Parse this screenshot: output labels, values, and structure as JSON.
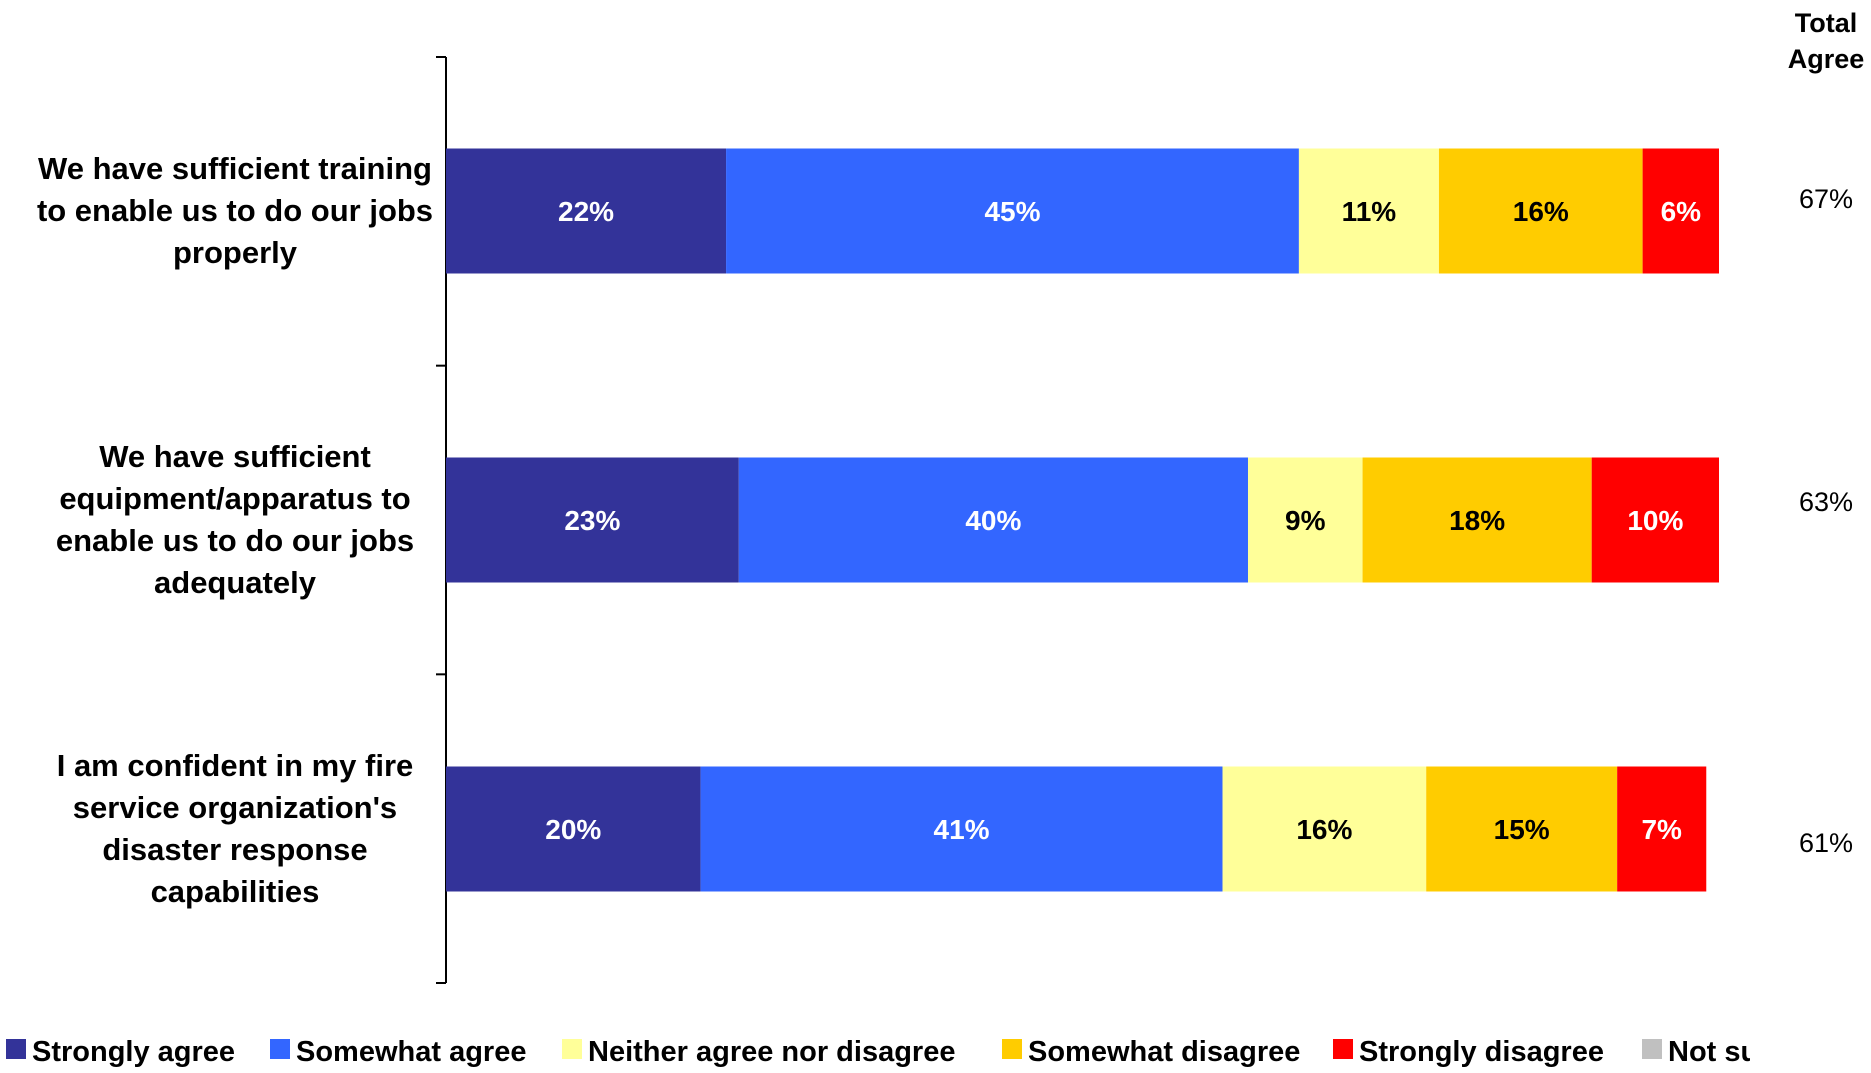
{
  "chart_data": {
    "type": "bar",
    "orientation": "horizontal",
    "stacked": true,
    "title": "",
    "xlim": [
      0,
      100
    ],
    "grid": false,
    "legend_position": "bottom",
    "categories": [
      "We have sufficient training to enable us to do our jobs properly",
      "We have sufficient equipment/apparatus to enable us to do our jobs adequately",
      "I am confident in my fire service organization's disaster response capabilities"
    ],
    "category_lines": [
      [
        "We have sufficient training",
        "to enable us to do our jobs",
        "properly"
      ],
      [
        "We have sufficient",
        "equipment/apparatus to",
        "enable us to do our jobs",
        "adequately"
      ],
      [
        "I am confident in my fire",
        "service organization's",
        "disaster response",
        "capabilities"
      ]
    ],
    "series": [
      {
        "name": "Strongly agree",
        "color": "#333399",
        "label_color": "#ffffff",
        "values": [
          22,
          23,
          20
        ],
        "labels": [
          "22%",
          "23%",
          "20%"
        ]
      },
      {
        "name": "Somewhat agree",
        "color": "#3366ff",
        "label_color": "#ffffff",
        "values": [
          45,
          40,
          41
        ],
        "labels": [
          "45%",
          "40%",
          "41%"
        ]
      },
      {
        "name": "Neither agree nor disagree",
        "color": "#ffff99",
        "label_color": "#000000",
        "values": [
          11,
          9,
          16
        ],
        "labels": [
          "11%",
          "9%",
          "16%"
        ]
      },
      {
        "name": "Somewhat disagree",
        "color": "#ffcc00",
        "label_color": "#000000",
        "values": [
          16,
          18,
          15
        ],
        "labels": [
          "16%",
          "18%",
          "15%"
        ]
      },
      {
        "name": "Strongly disagree",
        "color": "#ff0000",
        "label_color": "#ffffff",
        "values": [
          6,
          10,
          7
        ],
        "labels": [
          "6%",
          "10%",
          "7%"
        ]
      },
      {
        "name": "Not sure",
        "color": "#c0c0c0",
        "label_color": "#000000",
        "values": [
          0,
          0,
          0
        ],
        "labels": [
          "",
          "",
          ""
        ]
      }
    ],
    "legend_labels": [
      "Strongly agree",
      "Somewhat agree",
      "Neither agree nor disagree",
      "Somewhat disagree",
      "Strongly disagree",
      "Not su"
    ],
    "total_agree": {
      "header_lines": [
        "Total",
        "Agree"
      ],
      "labels": [
        "67%",
        "63%",
        "61%"
      ]
    }
  }
}
